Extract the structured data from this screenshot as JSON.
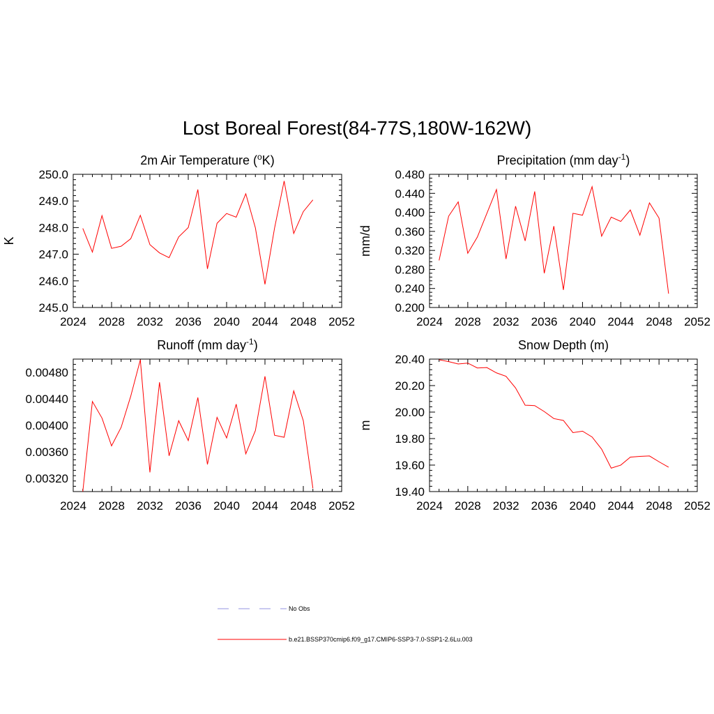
{
  "title": "Lost Boreal Forest(84-77S,180W-162W)",
  "legend": {
    "obs_label": "No Obs",
    "obs_color": "#a9a9e6",
    "model_label": "b.e21.BSSP370cmip6.f09_g17.CMIP6-SSP3-7.0-SSP1-2.6Lu.003",
    "model_color": "#ff0000"
  },
  "chart_data": [
    {
      "type": "line",
      "title": "2m Air Temperature (",
      "title_sup": "o",
      "title_after": "K)",
      "title_end": "",
      "ylabel": "K",
      "xlim": [
        2024,
        2052
      ],
      "ylim": [
        245.0,
        250.0
      ],
      "xticks": [
        2024,
        2028,
        2032,
        2036,
        2040,
        2044,
        2048,
        2052
      ],
      "yticks": [
        "245.0",
        "246.0",
        "247.0",
        "248.0",
        "249.0",
        "250.0"
      ],
      "ytick_values": [
        245.0,
        246.0,
        247.0,
        248.0,
        249.0,
        250.0
      ],
      "series": [
        {
          "color": "#ff0000",
          "x": [
            2025,
            2026,
            2027,
            2028,
            2029,
            2030,
            2031,
            2032,
            2033,
            2034,
            2035,
            2036,
            2037,
            2038,
            2039,
            2040,
            2041,
            2042,
            2043,
            2044,
            2045,
            2046,
            2047,
            2048,
            2049
          ],
          "y": [
            247.97,
            247.08,
            248.45,
            247.22,
            247.3,
            247.58,
            248.46,
            247.36,
            247.05,
            246.87,
            247.65,
            248.0,
            249.43,
            246.45,
            248.16,
            248.53,
            248.39,
            249.27,
            247.99,
            245.87,
            247.98,
            249.75,
            247.78,
            248.6,
            249.04
          ]
        }
      ]
    },
    {
      "type": "line",
      "title": "Precipitation (mm day",
      "title_sup": "-1",
      "title_after": ")",
      "title_end": "",
      "ylabel": "mm/d",
      "xlim": [
        2024,
        2052
      ],
      "ylim": [
        0.2,
        0.48
      ],
      "xticks": [
        2024,
        2028,
        2032,
        2036,
        2040,
        2044,
        2048,
        2052
      ],
      "yticks": [
        "0.200",
        "0.240",
        "0.280",
        "0.320",
        "0.360",
        "0.400",
        "0.440",
        "0.480"
      ],
      "ytick_values": [
        0.2,
        0.24,
        0.28,
        0.32,
        0.36,
        0.4,
        0.44,
        0.48
      ],
      "series": [
        {
          "color": "#ff0000",
          "x": [
            2025,
            2026,
            2027,
            2028,
            2029,
            2030,
            2031,
            2032,
            2033,
            2034,
            2035,
            2036,
            2037,
            2038,
            2039,
            2040,
            2041,
            2042,
            2043,
            2044,
            2045,
            2046,
            2047,
            2048,
            2049
          ],
          "y": [
            0.299,
            0.392,
            0.422,
            0.314,
            0.348,
            0.398,
            0.448,
            0.302,
            0.413,
            0.34,
            0.444,
            0.272,
            0.371,
            0.237,
            0.398,
            0.394,
            0.454,
            0.35,
            0.39,
            0.381,
            0.405,
            0.352,
            0.42,
            0.388,
            0.229
          ]
        }
      ]
    },
    {
      "type": "line",
      "title": "Runoff (mm day",
      "title_sup": "-1",
      "title_after": ")",
      "title_end": "",
      "ylabel": "",
      "xlim": [
        2024,
        2052
      ],
      "ylim": [
        0.003,
        0.005
      ],
      "xticks": [
        2024,
        2028,
        2032,
        2036,
        2040,
        2044,
        2048,
        2052
      ],
      "yticks": [
        "0.00320",
        "0.00360",
        "0.00400",
        "0.00440",
        "0.00480"
      ],
      "ytick_values": [
        0.0032,
        0.0036,
        0.004,
        0.0044,
        0.0048
      ],
      "series": [
        {
          "color": "#ff0000",
          "x": [
            2025,
            2026,
            2027,
            2028,
            2029,
            2030,
            2031,
            2032,
            2033,
            2034,
            2035,
            2036,
            2037,
            2038,
            2039,
            2040,
            2041,
            2042,
            2043,
            2044,
            2045,
            2046,
            2047,
            2048,
            2049
          ],
          "y": [
            0.003,
            0.00436,
            0.00411,
            0.00369,
            0.00397,
            0.00444,
            0.00499,
            0.00329,
            0.00465,
            0.00354,
            0.00407,
            0.00377,
            0.00442,
            0.00341,
            0.00412,
            0.00381,
            0.00432,
            0.00357,
            0.00392,
            0.00474,
            0.00385,
            0.00382,
            0.00452,
            0.00407,
            0.00305
          ]
        }
      ]
    },
    {
      "type": "line",
      "title": "Snow Depth (m)",
      "title_sup": "",
      "title_after": "",
      "title_end": "",
      "ylabel": "m",
      "xlim": [
        2024,
        2052
      ],
      "ylim": [
        19.4,
        20.4
      ],
      "xticks": [
        2024,
        2028,
        2032,
        2036,
        2040,
        2044,
        2048,
        2052
      ],
      "yticks": [
        "19.40",
        "19.60",
        "19.80",
        "20.00",
        "20.20",
        "20.40"
      ],
      "ytick_values": [
        19.4,
        19.6,
        19.8,
        20.0,
        20.2,
        20.4
      ],
      "series": [
        {
          "color": "#ff0000",
          "x": [
            2025,
            2026,
            2027,
            2028,
            2029,
            2030,
            2031,
            2032,
            2033,
            2034,
            2035,
            2036,
            2037,
            2038,
            2039,
            2040,
            2041,
            2042,
            2043,
            2044,
            2045,
            2046,
            2047,
            2048,
            2049
          ],
          "y": [
            20.395,
            20.381,
            20.363,
            20.37,
            20.333,
            20.336,
            20.296,
            20.27,
            20.182,
            20.052,
            20.049,
            20.004,
            19.951,
            19.937,
            19.845,
            19.856,
            19.812,
            19.72,
            19.577,
            19.6,
            19.66,
            19.666,
            19.669,
            19.625,
            19.584
          ]
        }
      ]
    }
  ]
}
